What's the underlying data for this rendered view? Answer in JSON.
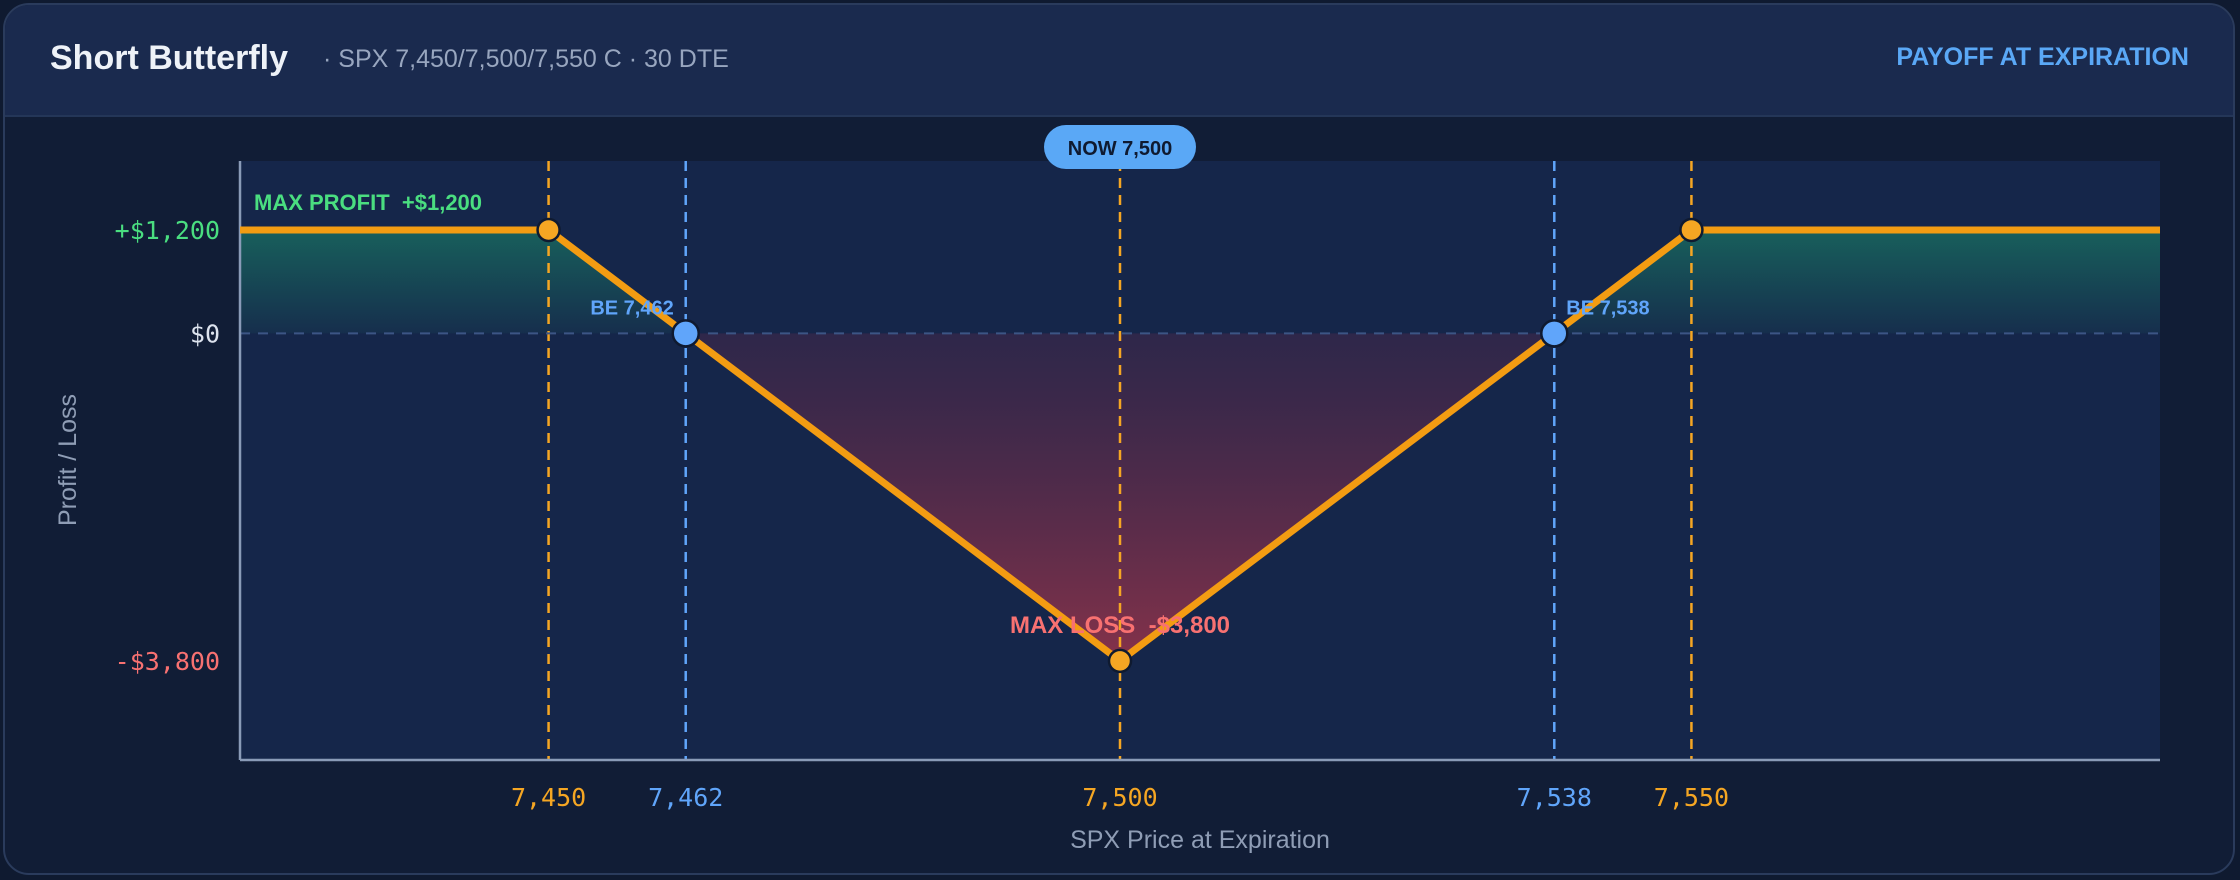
{
  "header": {
    "title": "Short Butterfly",
    "subtitle": "· SPX 7,450/7,500/7,550 C · 30 DTE",
    "mode": "PAYOFF AT EXPIRATION"
  },
  "colors": {
    "payoff_line": "#f39c12",
    "profit": "#4ade80",
    "loss": "#f87171",
    "breakeven": "#60a5fa",
    "strike": "#f5a623"
  },
  "chart_data": {
    "type": "line",
    "xlabel": "SPX Price at Expiration",
    "ylabel": "Profit / Loss",
    "xlim": [
      7423,
      7591
    ],
    "ylim": [
      -4950,
      2000
    ],
    "series": [
      {
        "x": [
          7423,
          7450,
          7500,
          7550,
          7591
        ],
        "y": [
          1200,
          1200,
          -3800,
          1200,
          1200
        ]
      }
    ],
    "y_ticks": [
      {
        "value": 1200,
        "label": "+$1,200",
        "kind": "profit"
      },
      {
        "value": 0,
        "label": "$0",
        "kind": "zero"
      },
      {
        "value": -3800,
        "label": "-$3,800",
        "kind": "loss"
      }
    ],
    "x_ticks": [
      {
        "value": 7450,
        "label": "7,450",
        "kind": "strike"
      },
      {
        "value": 7462,
        "label": "7,462",
        "kind": "breakeven"
      },
      {
        "value": 7500,
        "label": "7,500",
        "kind": "strike"
      },
      {
        "value": 7538,
        "label": "7,538",
        "kind": "breakeven"
      },
      {
        "value": 7550,
        "label": "7,550",
        "kind": "strike"
      }
    ],
    "markers": [
      {
        "x": 7450,
        "y": 1200,
        "kind": "strike"
      },
      {
        "x": 7462,
        "y": 0,
        "kind": "breakeven"
      },
      {
        "x": 7500,
        "y": -3800,
        "kind": "strike"
      },
      {
        "x": 7538,
        "y": 0,
        "kind": "breakeven"
      },
      {
        "x": 7550,
        "y": 1200,
        "kind": "strike"
      }
    ],
    "annotations": {
      "max_profit": "MAX PROFIT  +$1,200",
      "max_loss": "MAX LOSS  -$3,800",
      "be_left": "BE 7,462",
      "be_right": "BE 7,538",
      "now": "NOW 7,500"
    },
    "now_price": 7500,
    "grid": false,
    "legend": "none"
  }
}
